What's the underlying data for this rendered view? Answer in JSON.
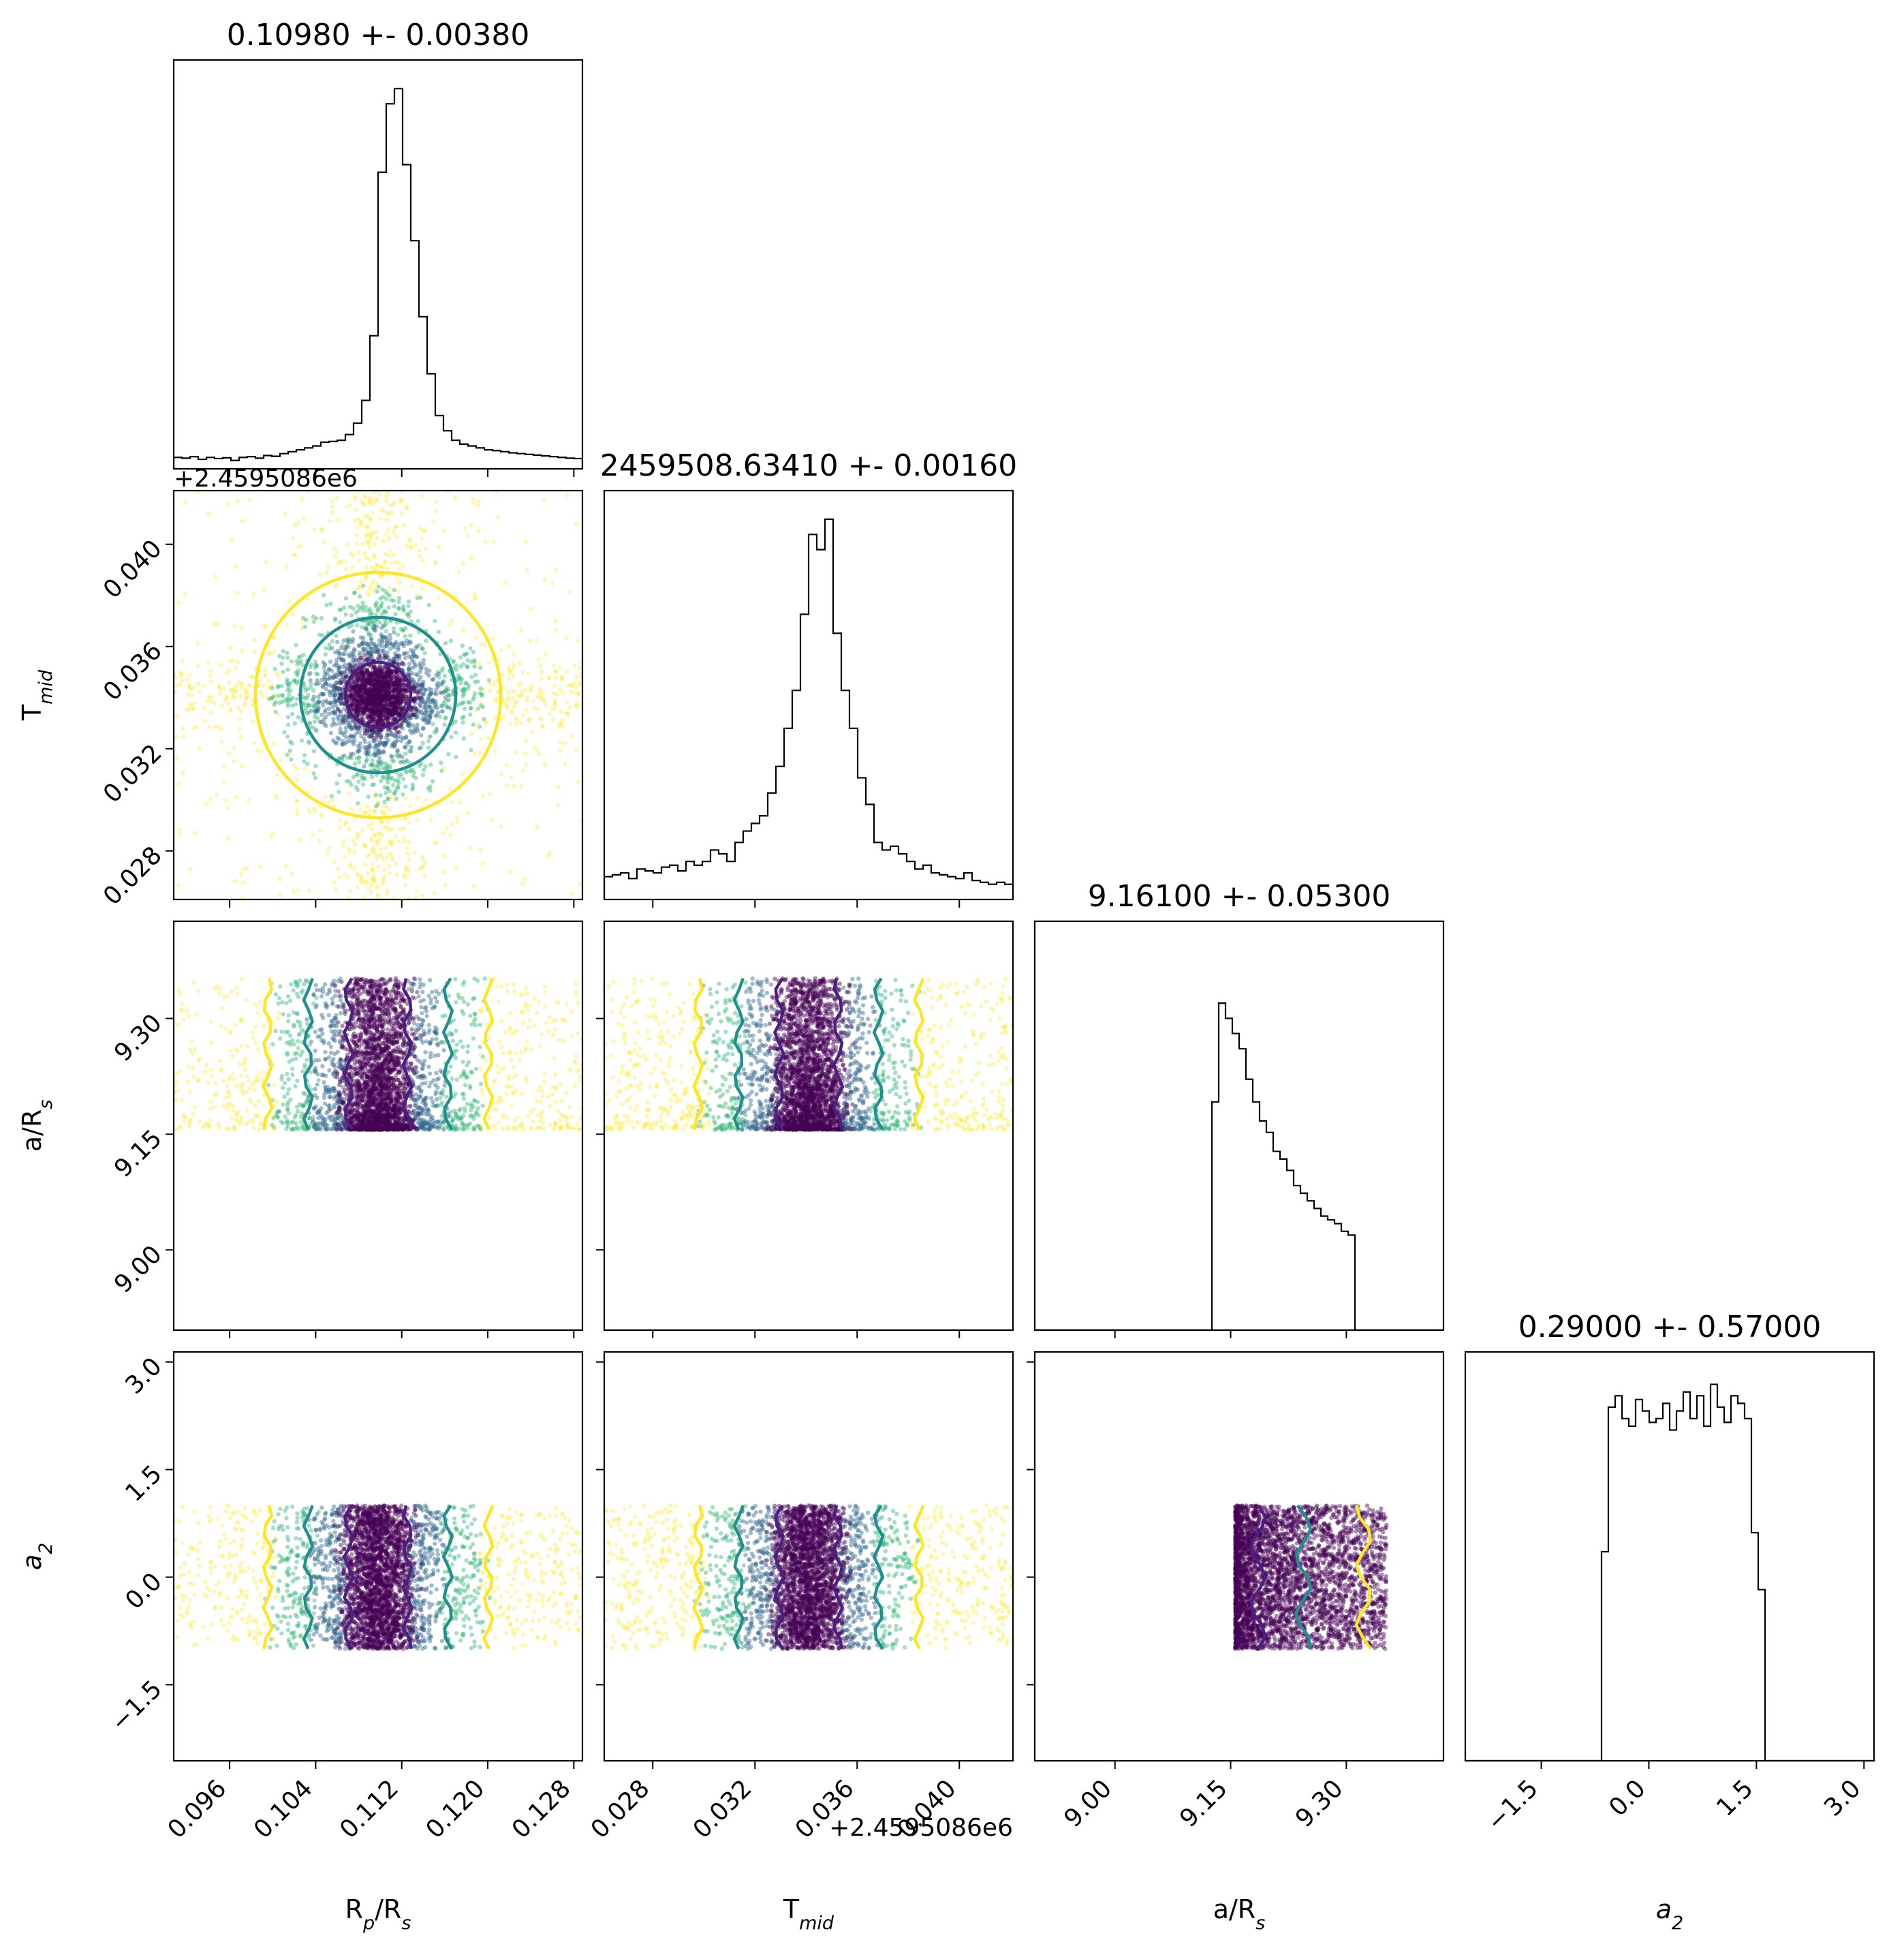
{
  "chart_data": {
    "type": "corner",
    "parameters": [
      {
        "key": "rp",
        "label_main": "R",
        "label_sub": "p",
        "label_tail": "/R",
        "label_sub2": "s",
        "title": "0.10980 +- 0.00380",
        "median": 0.1098,
        "sigma": 0.0038,
        "range": [
          0.0908,
          0.1288
        ],
        "ticks": [
          "0.096",
          "0.104",
          "0.112",
          "0.120",
          "0.128"
        ],
        "offset": ""
      },
      {
        "key": "tmid",
        "label_main": "T",
        "label_sub": "mid",
        "label_tail": "",
        "label_sub2": "",
        "title": "2459508.63410 +- 0.00160",
        "median": 0.0341,
        "sigma": 0.0016,
        "range": [
          0.0261,
          0.0421
        ],
        "ticks": [
          "0.028",
          "0.032",
          "0.036",
          "0.040"
        ],
        "offset": "+2.4595086e6"
      },
      {
        "key": "ars",
        "label_main": "a/R",
        "label_sub": "s",
        "label_tail": "",
        "label_sub2": "",
        "title": "9.16100 +- 0.05300",
        "median": 9.161,
        "sigma": 0.053,
        "range": [
          8.896,
          9.426
        ],
        "ticks": [
          "9.00",
          "9.15",
          "9.30"
        ],
        "offset": ""
      },
      {
        "key": "a2",
        "label_main": "a",
        "label_sub": "2",
        "label_tail": "",
        "label_sub2": "",
        "italic": true,
        "title": "0.29000 +- 0.57000",
        "median": 0.29,
        "sigma": 0.57,
        "range": [
          -2.56,
          3.14
        ],
        "ticks": [
          "−1.5",
          "0.0",
          "1.5",
          "3.0"
        ],
        "offset": ""
      }
    ],
    "histograms": {
      "rp": [
        0.03,
        0.028,
        0.032,
        0.025,
        0.03,
        0.027,
        0.029,
        0.022,
        0.03,
        0.032,
        0.028,
        0.035,
        0.033,
        0.04,
        0.045,
        0.05,
        0.055,
        0.06,
        0.07,
        0.072,
        0.075,
        0.09,
        0.12,
        0.18,
        0.35,
        0.78,
        0.96,
        1.0,
        0.8,
        0.6,
        0.4,
        0.25,
        0.14,
        0.1,
        0.075,
        0.065,
        0.06,
        0.055,
        0.05,
        0.048,
        0.045,
        0.042,
        0.04,
        0.038,
        0.036,
        0.034,
        0.032,
        0.03,
        0.028,
        0.027
      ],
      "tmid": [
        0.06,
        0.065,
        0.07,
        0.055,
        0.08,
        0.075,
        0.07,
        0.085,
        0.09,
        0.075,
        0.1,
        0.09,
        0.1,
        0.13,
        0.12,
        0.1,
        0.15,
        0.18,
        0.2,
        0.22,
        0.28,
        0.35,
        0.45,
        0.55,
        0.75,
        0.96,
        0.92,
        1.0,
        0.7,
        0.55,
        0.45,
        0.32,
        0.25,
        0.15,
        0.13,
        0.14,
        0.12,
        0.1,
        0.08,
        0.09,
        0.07,
        0.065,
        0.06,
        0.055,
        0.07,
        0.05,
        0.045,
        0.04,
        0.045,
        0.04
      ],
      "ars": [
        0,
        0,
        0,
        0,
        0,
        0,
        0,
        0,
        0,
        0,
        0,
        0,
        0,
        0,
        0,
        0,
        0,
        0,
        0,
        0,
        0,
        0,
        0,
        0,
        0,
        0,
        0.6,
        0.86,
        0.82,
        0.78,
        0.74,
        0.66,
        0.6,
        0.55,
        0.52,
        0.47,
        0.45,
        0.42,
        0.38,
        0.36,
        0.34,
        0.32,
        0.3,
        0.29,
        0.28,
        0.26,
        0.25,
        0,
        0,
        0,
        0,
        0,
        0,
        0,
        0,
        0,
        0,
        0,
        0,
        0
      ],
      "a2": [
        0,
        0,
        0,
        0,
        0,
        0,
        0,
        0,
        0,
        0,
        0,
        0,
        0,
        0,
        0,
        0,
        0,
        0,
        0,
        0,
        0.55,
        0.93,
        0.96,
        0.9,
        0.88,
        0.95,
        0.92,
        0.89,
        0.9,
        0.94,
        0.87,
        0.92,
        0.97,
        0.9,
        0.96,
        0.88,
        0.99,
        0.93,
        0.89,
        0.96,
        0.94,
        0.9,
        0.6,
        0.45,
        0,
        0,
        0,
        0,
        0,
        0,
        0,
        0,
        0,
        0,
        0,
        0,
        0,
        0,
        0,
        0
      ]
    },
    "cmap": [
      "#440154",
      "#31688e",
      "#35b779",
      "#fde725"
    ],
    "contour_colors": [
      "#4b1e80",
      "#21908d",
      "#fde725"
    ],
    "ars_bounds": [
      9.156,
      9.352
    ],
    "a2_bounds": [
      -1.0,
      1.0
    ]
  }
}
